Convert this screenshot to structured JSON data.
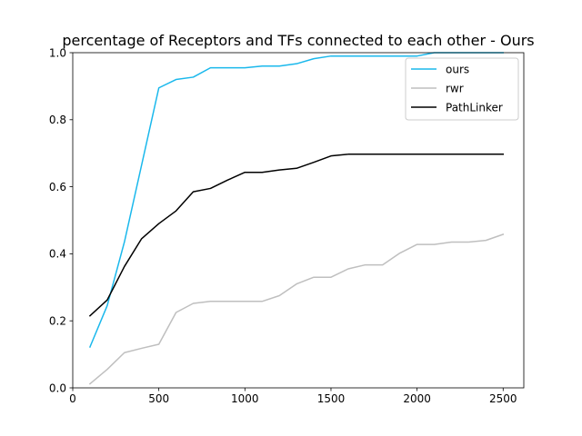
{
  "chart_data": {
    "type": "line",
    "title": "percentage of Receptors and TFs connected to each other - Ours",
    "xlabel": "",
    "ylabel": "",
    "xlim": [
      0,
      2620
    ],
    "ylim": [
      0.0,
      1.0
    ],
    "xticks": [
      "0",
      "500",
      "1000",
      "1500",
      "2000",
      "2500"
    ],
    "xtick_values": [
      0,
      500,
      1000,
      1500,
      2000,
      2500
    ],
    "yticks": [
      "0.0",
      "0.2",
      "0.4",
      "0.6",
      "0.8",
      "1.0"
    ],
    "ytick_values": [
      0.0,
      0.2,
      0.4,
      0.6,
      0.8,
      1.0
    ],
    "grid": false,
    "legend_position": "top-right",
    "x": [
      100,
      200,
      300,
      400,
      500,
      600,
      700,
      800,
      900,
      1000,
      1100,
      1200,
      1300,
      1400,
      1500,
      1600,
      1700,
      1800,
      1900,
      2000,
      2100,
      2200,
      2300,
      2400,
      2500
    ],
    "series": [
      {
        "name": "ours",
        "color": "#1ab8ec",
        "values": [
          0.122,
          0.245,
          0.435,
          0.665,
          0.895,
          0.92,
          0.927,
          0.955,
          0.955,
          0.955,
          0.96,
          0.96,
          0.967,
          0.982,
          0.99,
          0.99,
          0.99,
          0.99,
          0.99,
          0.99,
          1.0,
          1.0,
          1.0,
          1.0,
          1.0
        ]
      },
      {
        "name": "rwr",
        "color": "#bfbfbf",
        "values": [
          0.012,
          0.055,
          0.105,
          0.118,
          0.13,
          0.225,
          0.252,
          0.258,
          0.258,
          0.258,
          0.258,
          0.275,
          0.31,
          0.33,
          0.33,
          0.355,
          0.367,
          0.367,
          0.402,
          0.428,
          0.428,
          0.435,
          0.435,
          0.44,
          0.458
        ]
      },
      {
        "name": "PathLinker",
        "color": "#000000",
        "values": [
          0.215,
          0.262,
          0.362,
          0.445,
          0.49,
          0.528,
          0.585,
          0.595,
          0.62,
          0.643,
          0.643,
          0.65,
          0.655,
          0.673,
          0.692,
          0.697,
          0.697,
          0.697,
          0.697,
          0.697,
          0.697,
          0.697,
          0.697,
          0.697,
          0.697
        ]
      }
    ]
  }
}
